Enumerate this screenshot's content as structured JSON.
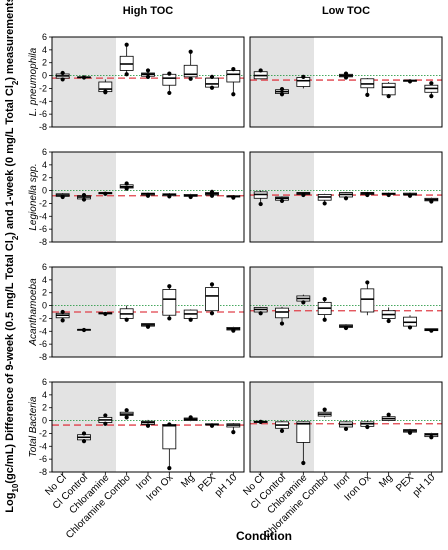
{
  "chart_data": {
    "type": "boxplot",
    "facet_columns": [
      "High TOC",
      "Low TOC"
    ],
    "facet_rows": [
      "L. pneumophila",
      "Legionella spp.",
      "Acanthamoeba",
      "Total Bacteria"
    ],
    "xlabel": "Condition",
    "ylabel_parts": [
      "Log",
      "10",
      "(gc/mL) Difference of 9-week (0.5 mg/L Total Cl",
      "2",
      ") and 1-week (0 mg/L Total Cl",
      "2",
      ") measurements"
    ],
    "categories": [
      "No Cl",
      "Cl Control",
      "Chloramine",
      "Chloramine Combo",
      "Iron",
      "Iron Ox",
      "Mg",
      "PEX",
      "pH 10"
    ],
    "shaded_categories": [
      "No Cl",
      "Cl Control",
      "Chloramine"
    ],
    "ylim": [
      -8,
      6
    ],
    "yticks": [
      6,
      4,
      2,
      0,
      -2,
      -4,
      -6,
      -8
    ],
    "reference_lines": {
      "zero_line": "dotted green",
      "control_line": "dashed red"
    },
    "colors": {
      "red_line": "#e0404a",
      "green_line": "#2e9c4a",
      "shade": "#e3e3e3",
      "box_fill": "#ffffff"
    },
    "panels": [
      {
        "row": "L. pneumophila",
        "col": "High TOC",
        "control_line": -0.4,
        "boxes": [
          {
            "category": "No Cl",
            "q1": -0.4,
            "median": -0.05,
            "q3": 0.25,
            "wmin": -0.6,
            "wmax": 0.4,
            "points": [
              0.4,
              -0.6
            ]
          },
          {
            "category": "Cl Control",
            "q1": -0.3,
            "median": -0.25,
            "q3": -0.2,
            "wmin": -0.3,
            "wmax": -0.2,
            "points": [
              -0.3
            ]
          },
          {
            "category": "Chloramine",
            "q1": -2.5,
            "median": -2.1,
            "q3": -1.0,
            "wmin": -2.6,
            "wmax": -0.6,
            "points": [
              -2.6,
              -2.5
            ]
          },
          {
            "category": "Chloramine Combo",
            "q1": 0.8,
            "median": 1.8,
            "q3": 3.0,
            "wmin": 0.2,
            "wmax": 4.8,
            "points": [
              4.8,
              0.2
            ]
          },
          {
            "category": "Iron",
            "q1": -0.1,
            "median": 0.2,
            "q3": 0.4,
            "wmin": -0.2,
            "wmax": 0.8,
            "points": [
              0.8,
              -0.2
            ]
          },
          {
            "category": "Iron Ox",
            "q1": -1.5,
            "median": -0.4,
            "q3": 0.2,
            "wmin": -2.7,
            "wmax": 0.3,
            "points": [
              -2.7,
              0.3
            ]
          },
          {
            "category": "Mg",
            "q1": -0.2,
            "median": 0.2,
            "q3": 1.6,
            "wmin": -0.5,
            "wmax": 3.7,
            "points": [
              3.7,
              -0.5
            ]
          },
          {
            "category": "PEX",
            "q1": -1.8,
            "median": -1.3,
            "q3": -0.4,
            "wmin": -1.9,
            "wmax": -0.2,
            "points": [
              -0.2,
              -1.9
            ]
          },
          {
            "category": "pH 10",
            "q1": -1.0,
            "median": 0.2,
            "q3": 0.8,
            "wmin": -2.9,
            "wmax": 1.0,
            "points": [
              1.0,
              -2.9
            ]
          }
        ]
      },
      {
        "row": "L. pneumophila",
        "col": "Low TOC",
        "control_line": -0.7,
        "boxes": [
          {
            "category": "No Cl",
            "q1": -0.5,
            "median": 0.0,
            "q3": 0.6,
            "wmin": -0.6,
            "wmax": 0.8,
            "points": [
              0.8
            ]
          },
          {
            "category": "Cl Control",
            "q1": -2.8,
            "median": -2.5,
            "q3": -2.2,
            "wmin": -2.9,
            "wmax": -2.1,
            "points": [
              -2.9,
              -2.1
            ]
          },
          {
            "category": "Chloramine",
            "q1": -1.7,
            "median": -0.8,
            "q3": -0.3,
            "wmin": -2.0,
            "wmax": -0.2,
            "points": [
              -0.2
            ]
          },
          {
            "category": "Iron",
            "q1": -0.2,
            "median": 0.0,
            "q3": 0.2,
            "wmin": -0.3,
            "wmax": 0.3,
            "points": [
              0.3,
              -0.3
            ]
          },
          {
            "category": "Iron Ox",
            "q1": -1.9,
            "median": -1.3,
            "q3": -0.5,
            "wmin": -3.0,
            "wmax": -0.4,
            "points": [
              -3.0
            ]
          },
          {
            "category": "Mg",
            "q1": -3.0,
            "median": -1.8,
            "q3": -1.2,
            "wmin": -3.2,
            "wmax": -1.0,
            "points": [
              -3.2
            ]
          },
          {
            "category": "PEX",
            "q1": -0.9,
            "median": -0.8,
            "q3": -0.7,
            "wmin": -0.9,
            "wmax": -0.7,
            "points": [
              -0.9
            ]
          },
          {
            "category": "pH 10",
            "q1": -2.6,
            "median": -2.0,
            "q3": -1.5,
            "wmin": -3.2,
            "wmax": -1.2,
            "points": [
              -3.2,
              -1.2
            ]
          }
        ]
      },
      {
        "row": "Legionella spp.",
        "col": "High TOC",
        "control_line": -0.8,
        "boxes": [
          {
            "category": "No Cl",
            "q1": -0.9,
            "median": -0.7,
            "q3": -0.5,
            "wmin": -1.0,
            "wmax": -0.4,
            "points": [
              -1.0
            ]
          },
          {
            "category": "Cl Control",
            "q1": -1.3,
            "median": -1.0,
            "q3": -0.8,
            "wmin": -1.4,
            "wmax": -0.7,
            "points": [
              -1.4,
              -0.7
            ]
          },
          {
            "category": "Chloramine",
            "q1": -0.5,
            "median": -0.4,
            "q3": -0.3,
            "wmin": -0.5,
            "wmax": -0.3,
            "points": [
              -0.5
            ]
          },
          {
            "category": "Chloramine Combo",
            "q1": 0.4,
            "median": 0.6,
            "q3": 0.9,
            "wmin": 0.2,
            "wmax": 1.1,
            "points": [
              1.1,
              0.3
            ]
          },
          {
            "category": "Iron",
            "q1": -0.7,
            "median": -0.5,
            "q3": -0.4,
            "wmin": -0.8,
            "wmax": -0.3,
            "points": [
              -0.8
            ]
          },
          {
            "category": "Iron Ox",
            "q1": -0.8,
            "median": -0.6,
            "q3": -0.5,
            "wmin": -0.9,
            "wmax": -0.4,
            "points": [
              -0.9
            ]
          },
          {
            "category": "Mg",
            "q1": -0.9,
            "median": -0.8,
            "q3": -0.6,
            "wmin": -1.0,
            "wmax": -0.5,
            "points": [
              -1.0
            ]
          },
          {
            "category": "PEX",
            "q1": -0.7,
            "median": -0.5,
            "q3": -0.3,
            "wmin": -0.8,
            "wmax": -0.2,
            "points": [
              -0.8,
              -0.2
            ]
          },
          {
            "category": "pH 10",
            "q1": -1.0,
            "median": -0.9,
            "q3": -0.8,
            "wmin": -1.1,
            "wmax": -0.7,
            "points": [
              -1.1
            ]
          }
        ]
      },
      {
        "row": "Legionella spp.",
        "col": "Low TOC",
        "control_line": -0.7,
        "boxes": [
          {
            "category": "No Cl",
            "q1": -1.2,
            "median": -0.6,
            "q3": -0.2,
            "wmin": -2.1,
            "wmax": 0.0,
            "points": [
              -2.1
            ]
          },
          {
            "category": "Cl Control",
            "q1": -1.5,
            "median": -1.2,
            "q3": -1.0,
            "wmin": -1.6,
            "wmax": -0.9,
            "points": [
              -1.6
            ]
          },
          {
            "category": "Chloramine",
            "q1": -0.6,
            "median": -0.4,
            "q3": -0.3,
            "wmin": -0.7,
            "wmax": -0.3,
            "points": [
              -0.7
            ]
          },
          {
            "category": "Chloramine Combo",
            "q1": -1.5,
            "median": -1.0,
            "q3": -0.6,
            "wmin": -2.0,
            "wmax": -0.5,
            "points": [
              -2.0
            ]
          },
          {
            "category": "Iron",
            "q1": -1.0,
            "median": -0.6,
            "q3": -0.3,
            "wmin": -1.2,
            "wmax": -0.2,
            "points": [
              -1.2
            ]
          },
          {
            "category": "Iron Ox",
            "q1": -0.6,
            "median": -0.4,
            "q3": -0.3,
            "wmin": -0.7,
            "wmax": -0.2,
            "points": [
              -0.7
            ]
          },
          {
            "category": "Mg",
            "q1": -0.6,
            "median": -0.5,
            "q3": -0.4,
            "wmin": -0.7,
            "wmax": -0.3,
            "points": [
              -0.7
            ]
          },
          {
            "category": "PEX",
            "q1": -0.7,
            "median": -0.6,
            "q3": -0.4,
            "wmin": -0.8,
            "wmax": -0.3,
            "points": [
              -0.8
            ]
          },
          {
            "category": "pH 10",
            "q1": -1.6,
            "median": -1.4,
            "q3": -1.2,
            "wmin": -1.7,
            "wmax": -1.1,
            "points": [
              -1.7
            ]
          }
        ]
      },
      {
        "row": "Acanthamoeba",
        "col": "High TOC",
        "control_line": -1.0,
        "boxes": [
          {
            "category": "No Cl",
            "q1": -1.9,
            "median": -1.5,
            "q3": -1.2,
            "wmin": -2.3,
            "wmax": -1.0,
            "points": [
              -2.3,
              -1.0
            ]
          },
          {
            "category": "Cl Control",
            "q1": -3.8,
            "median": -3.75,
            "q3": -3.7,
            "wmin": -3.8,
            "wmax": -3.7,
            "points": [
              -3.8
            ]
          },
          {
            "category": "Chloramine",
            "q1": -1.3,
            "median": -1.2,
            "q3": -1.1,
            "wmin": -1.3,
            "wmax": -1.1,
            "points": [
              -1.3
            ]
          },
          {
            "category": "Chloramine Combo",
            "q1": -2.0,
            "median": -1.3,
            "q3": -0.5,
            "wmin": -2.2,
            "wmax": 0.0,
            "points": [
              -2.2
            ]
          },
          {
            "category": "Iron",
            "q1": -3.2,
            "median": -3.0,
            "q3": -2.8,
            "wmin": -3.3,
            "wmax": -2.8,
            "points": [
              -3.3
            ]
          },
          {
            "category": "Iron Ox",
            "q1": -1.5,
            "median": 1.0,
            "q3": 2.5,
            "wmin": -2.0,
            "wmax": 3.0,
            "points": [
              3.0,
              -2.0
            ]
          },
          {
            "category": "Mg",
            "q1": -2.0,
            "median": -1.3,
            "q3": -0.7,
            "wmin": -2.2,
            "wmax": -0.6,
            "points": [
              -2.2
            ]
          },
          {
            "category": "PEX",
            "q1": -0.8,
            "median": 1.5,
            "q3": 2.8,
            "wmin": -1.2,
            "wmax": 3.3,
            "points": [
              3.3,
              -1.2
            ]
          },
          {
            "category": "pH 10",
            "q1": -3.8,
            "median": -3.6,
            "q3": -3.4,
            "wmin": -3.9,
            "wmax": -3.3,
            "points": [
              -3.9
            ]
          }
        ]
      },
      {
        "row": "Acanthamoeba",
        "col": "Low TOC",
        "control_line": -0.8,
        "boxes": [
          {
            "category": "No Cl",
            "q1": -1.0,
            "median": -0.6,
            "q3": -0.3,
            "wmin": -1.2,
            "wmax": -0.2,
            "points": [
              -1.2
            ]
          },
          {
            "category": "Cl Control",
            "q1": -1.9,
            "median": -1.0,
            "q3": -0.4,
            "wmin": -2.8,
            "wmax": -0.2,
            "points": [
              -2.8
            ]
          },
          {
            "category": "Chloramine",
            "q1": 0.7,
            "median": 1.1,
            "q3": 1.5,
            "wmin": 0.5,
            "wmax": 1.7,
            "points": [
              0.5
            ]
          },
          {
            "category": "Chloramine Combo",
            "q1": -1.4,
            "median": -0.4,
            "q3": 0.5,
            "wmin": -2.2,
            "wmax": 1.0,
            "points": [
              -2.2,
              1.0
            ]
          },
          {
            "category": "Iron",
            "q1": -3.4,
            "median": -3.2,
            "q3": -3.0,
            "wmin": -3.5,
            "wmax": -2.9,
            "points": [
              -3.5
            ]
          },
          {
            "category": "Iron Ox",
            "q1": -1.0,
            "median": 1.0,
            "q3": 2.6,
            "wmin": -1.5,
            "wmax": 3.6,
            "points": [
              3.6
            ]
          },
          {
            "category": "Mg",
            "q1": -2.0,
            "median": -1.4,
            "q3": -0.8,
            "wmin": -2.4,
            "wmax": -0.3,
            "points": [
              -2.4
            ]
          },
          {
            "category": "PEX",
            "q1": -3.2,
            "median": -2.6,
            "q3": -1.8,
            "wmin": -3.4,
            "wmax": -1.5,
            "points": [
              -3.4
            ]
          },
          {
            "category": "pH 10",
            "q1": -3.9,
            "median": -3.75,
            "q3": -3.6,
            "wmin": -3.9,
            "wmax": -3.6,
            "points": [
              -3.9
            ]
          }
        ]
      },
      {
        "row": "Total Bacteria",
        "col": "High TOC",
        "control_line": -0.7,
        "boxes": [
          {
            "category": "Cl Control",
            "q1": -3.0,
            "median": -2.6,
            "q3": -2.2,
            "wmin": -3.2,
            "wmax": -2.0,
            "points": [
              -3.2,
              -2.0
            ]
          },
          {
            "category": "Chloramine",
            "q1": -0.3,
            "median": 0.1,
            "q3": 0.5,
            "wmin": -0.5,
            "wmax": 0.8,
            "points": [
              0.8,
              -0.5
            ]
          },
          {
            "category": "Chloramine Combo",
            "q1": 0.8,
            "median": 1.0,
            "q3": 1.3,
            "wmin": 0.5,
            "wmax": 1.6,
            "points": [
              1.6,
              0.5
            ]
          },
          {
            "category": "Iron",
            "q1": -0.6,
            "median": -0.3,
            "q3": -0.1,
            "wmin": -0.8,
            "wmax": 0.1,
            "points": [
              -0.8
            ]
          },
          {
            "category": "Iron Ox",
            "q1": -4.4,
            "median": -0.8,
            "q3": -0.6,
            "wmin": -7.4,
            "wmax": -0.5,
            "points": [
              -7.4,
              -0.6
            ]
          },
          {
            "category": "Mg",
            "q1": 0.0,
            "median": 0.2,
            "q3": 0.4,
            "wmin": -0.1,
            "wmax": 0.5,
            "points": [
              0.5
            ]
          },
          {
            "category": "PEX",
            "q1": -0.7,
            "median": -0.6,
            "q3": -0.5,
            "wmin": -0.8,
            "wmax": -0.4,
            "points": [
              -0.8
            ]
          },
          {
            "category": "pH 10",
            "q1": -1.0,
            "median": -0.7,
            "q3": -0.5,
            "wmin": -1.8,
            "wmax": -0.4,
            "points": [
              -1.8
            ]
          }
        ]
      },
      {
        "row": "Total Bacteria",
        "col": "Low TOC",
        "control_line": -0.5,
        "boxes": [
          {
            "category": "No Cl",
            "q1": -0.3,
            "median": -0.2,
            "q3": -0.1,
            "wmin": -0.3,
            "wmax": -0.1,
            "points": [
              -0.2
            ]
          },
          {
            "category": "Cl Control",
            "q1": -1.2,
            "median": -0.7,
            "q3": -0.2,
            "wmin": -1.6,
            "wmax": 0.0,
            "points": [
              -1.6
            ]
          },
          {
            "category": "Chloramine",
            "q1": -3.4,
            "median": -0.5,
            "q3": -0.2,
            "wmin": -6.6,
            "wmax": -0.1,
            "points": [
              -6.6
            ]
          },
          {
            "category": "Chloramine Combo",
            "q1": 0.7,
            "median": 1.0,
            "q3": 1.3,
            "wmin": 0.5,
            "wmax": 1.7,
            "points": [
              1.7
            ]
          },
          {
            "category": "Iron",
            "q1": -1.0,
            "median": -0.6,
            "q3": -0.2,
            "wmin": -1.3,
            "wmax": 0.0,
            "points": [
              -1.3
            ]
          },
          {
            "category": "Iron Ox",
            "q1": -0.9,
            "median": -0.5,
            "q3": -0.2,
            "wmin": -1.0,
            "wmax": 0.0,
            "points": [
              -1.0
            ]
          },
          {
            "category": "Mg",
            "q1": 0.0,
            "median": 0.3,
            "q3": 0.6,
            "wmin": -0.1,
            "wmax": 0.9,
            "points": [
              0.9
            ]
          },
          {
            "category": "PEX",
            "q1": -1.8,
            "median": -1.6,
            "q3": -1.4,
            "wmin": -1.9,
            "wmax": -1.3,
            "points": [
              -1.9
            ]
          },
          {
            "category": "pH 10",
            "q1": -2.5,
            "median": -2.2,
            "q3": -2.0,
            "wmin": -2.6,
            "wmax": -1.9,
            "points": [
              -2.6
            ]
          }
        ]
      }
    ]
  }
}
